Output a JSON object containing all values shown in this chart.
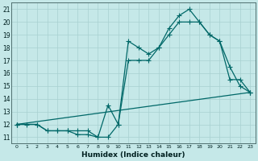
{
  "xlabel": "Humidex (Indice chaleur)",
  "background_color": "#c5e8e8",
  "grid_color": "#a8d0d0",
  "line_color": "#006868",
  "xlim": [
    -0.5,
    23.5
  ],
  "ylim": [
    10.5,
    21.5
  ],
  "xticks": [
    0,
    1,
    2,
    3,
    4,
    5,
    6,
    7,
    8,
    9,
    10,
    11,
    12,
    13,
    14,
    15,
    16,
    17,
    18,
    19,
    20,
    21,
    22,
    23
  ],
  "yticks": [
    11,
    12,
    13,
    14,
    15,
    16,
    17,
    18,
    19,
    20,
    21
  ],
  "line1_x": [
    0,
    1,
    2,
    3,
    4,
    5,
    6,
    7,
    8,
    9,
    10,
    11,
    12,
    13,
    14,
    15,
    16,
    17,
    18,
    19,
    20,
    21,
    22,
    23
  ],
  "line1_y": [
    12,
    12,
    12,
    11.5,
    11.5,
    11.5,
    11.2,
    11.2,
    11,
    13.5,
    12,
    18.5,
    18,
    17.5,
    18,
    19.5,
    20.5,
    21,
    20,
    19,
    18.5,
    16.5,
    15,
    14.5
  ],
  "line2_x": [
    0,
    2,
    3,
    4,
    5,
    6,
    7,
    8,
    9,
    10,
    11,
    12,
    13,
    14,
    15,
    16,
    17,
    18,
    19,
    20,
    21,
    22,
    23
  ],
  "line2_y": [
    12,
    12,
    11.5,
    11.5,
    11.5,
    11.5,
    11.5,
    11,
    11,
    12,
    17,
    17,
    17,
    18,
    19,
    20,
    20,
    20,
    19,
    18.5,
    15.5,
    15.5,
    14.5
  ],
  "line3_x": [
    0,
    23
  ],
  "line3_y": [
    12,
    14.5
  ]
}
